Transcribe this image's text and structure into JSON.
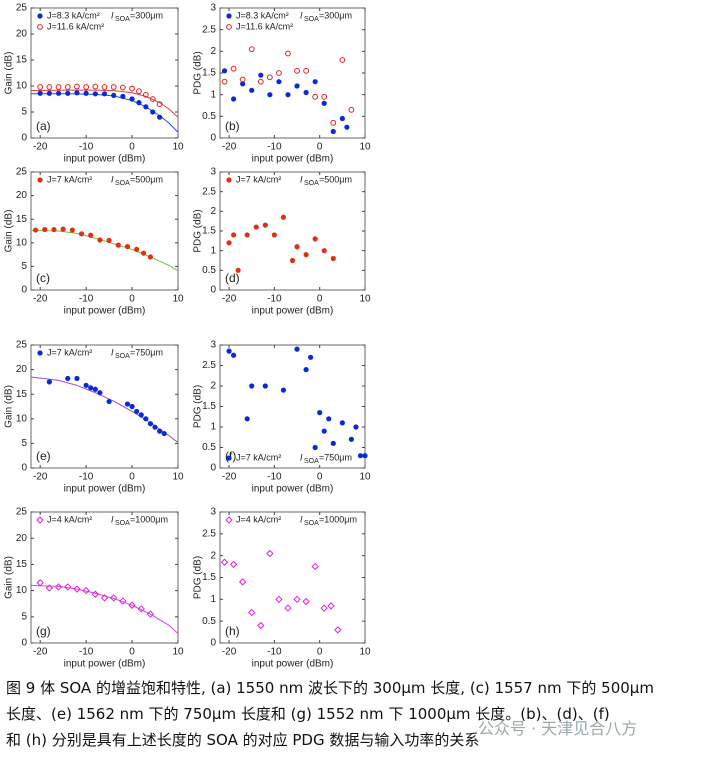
{
  "chart_data": [
    {
      "type": "scatter",
      "ylabel": "Gain (dB)",
      "xlabel": "input power (dBm)",
      "panel": "(a)",
      "xlim": [
        -22,
        10
      ],
      "ylim": [
        0,
        25
      ],
      "xticks": [
        -20,
        -10,
        0,
        10
      ],
      "yticks": [
        0,
        5,
        10,
        15,
        20,
        25
      ],
      "legend": "upper left",
      "annotation": {
        "symbol": "I",
        "subscript": "SOA",
        "text": "=300μm"
      },
      "series": [
        {
          "name": "J=8.3 kA/cm²",
          "color": "#0a2ad8",
          "marker": "filled-circle",
          "x": [
            -20,
            -18,
            -16,
            -14,
            -12,
            -10,
            -8,
            -6,
            -4,
            -2,
            0,
            1.5,
            3,
            4.5,
            6
          ],
          "values": [
            8.6,
            8.6,
            8.6,
            8.6,
            8.7,
            8.6,
            8.5,
            8.5,
            8.2,
            8,
            7.5,
            6.8,
            6,
            5,
            4
          ],
          "fit": {
            "color": "#2050e0",
            "x": [
              -22,
              -14,
              -8,
              -4,
              0,
              3,
              6,
              8,
              10
            ],
            "values": [
              8.5,
              8.5,
              8.4,
              8.1,
              7.2,
              6,
              4.3,
              2.9,
              1.1
            ]
          }
        },
        {
          "name": "J=11.6 kA/cm²",
          "color": "#e02020",
          "marker": "open-circle",
          "x": [
            -20,
            -18,
            -16,
            -14,
            -12,
            -10,
            -8,
            -6,
            -4,
            -2,
            0,
            1.5,
            3,
            4.5,
            6
          ],
          "values": [
            9.8,
            9.8,
            9.8,
            9.8,
            9.9,
            9.8,
            9.9,
            9.8,
            9.8,
            9.7,
            9.5,
            9,
            8.3,
            7.5,
            6.5
          ],
          "fit": {
            "color": "#e04040",
            "x": [
              -22,
              -14,
              -8,
              -4,
              0,
              3,
              6,
              8,
              10
            ],
            "values": [
              9.1,
              9.2,
              9.2,
              9.1,
              8.7,
              8,
              6.8,
              5.6,
              4
            ]
          }
        }
      ]
    },
    {
      "type": "scatter",
      "ylabel": "PDG (dB)",
      "xlabel": "input power (dBm)",
      "panel": "(b)",
      "xlim": [
        -22,
        10
      ],
      "ylim": [
        0,
        3
      ],
      "xticks": [
        -20,
        -10,
        0,
        10
      ],
      "yticks": [
        0,
        0.5,
        1,
        1.5,
        2,
        2.5,
        3
      ],
      "legend": "upper left",
      "annotation": {
        "symbol": "I",
        "subscript": "SOA",
        "text": "=300μm"
      },
      "series": [
        {
          "name": "J=8.3 kA/cm²",
          "color": "#0a2ad8",
          "marker": "filled-circle",
          "x": [
            -21,
            -19,
            -17,
            -15,
            -13,
            -11,
            -9,
            -7,
            -5,
            -3,
            -1,
            1,
            3,
            5,
            6
          ],
          "values": [
            1.55,
            0.9,
            1.25,
            1.1,
            1.45,
            1.0,
            1.3,
            1.0,
            1.2,
            1.05,
            1.3,
            0.8,
            0.15,
            0.45,
            0.25
          ]
        },
        {
          "name": "J=11.6 kA/cm²",
          "color": "#e02020",
          "marker": "open-circle",
          "x": [
            -21,
            -19,
            -17,
            -15,
            -13,
            -11,
            -9,
            -7,
            -5,
            -3,
            -1,
            1,
            3,
            5,
            7
          ],
          "values": [
            1.3,
            1.6,
            1.35,
            2.05,
            1.3,
            1.4,
            1.5,
            1.95,
            1.55,
            1.55,
            0.95,
            0.95,
            0.35,
            1.8,
            0.65
          ]
        }
      ]
    },
    {
      "type": "scatter",
      "ylabel": "Gain (dB)",
      "xlabel": "input power (dBm)",
      "panel": "(c)",
      "xlim": [
        -22,
        10
      ],
      "ylim": [
        0,
        25
      ],
      "xticks": [
        -20,
        -10,
        0,
        10
      ],
      "yticks": [
        0,
        5,
        10,
        15,
        20,
        25
      ],
      "legend": "upper left",
      "annotation": {
        "symbol": "I",
        "subscript": "SOA",
        "text": "=500μm"
      },
      "series": [
        {
          "name": "J=7 kA/cm²",
          "color": "#e03010",
          "marker": "filled-circle",
          "x": [
            -21,
            -19,
            -17,
            -15,
            -13,
            -11,
            -9,
            -7,
            -5,
            -3,
            -1,
            1,
            2.5,
            4
          ],
          "values": [
            12.7,
            12.8,
            12.8,
            12.9,
            12.7,
            11.9,
            11.6,
            10.6,
            10.5,
            9.5,
            9.2,
            8.6,
            7.8,
            7
          ],
          "fit": {
            "color": "#70c040",
            "x": [
              -22,
              -16,
              -12,
              -8,
              -4,
              0,
              4,
              8,
              10
            ],
            "values": [
              12.6,
              12.5,
              12,
              11,
              9.8,
              8.6,
              7,
              5.2,
              4.1
            ]
          }
        }
      ]
    },
    {
      "type": "scatter",
      "ylabel": "PDG (dB)",
      "xlabel": "input power (dBm)",
      "panel": "(d)",
      "xlim": [
        -22,
        10
      ],
      "ylim": [
        0,
        3
      ],
      "xticks": [
        -20,
        -10,
        0,
        10
      ],
      "yticks": [
        0,
        0.5,
        1,
        1.5,
        2,
        2.5,
        3
      ],
      "legend": "upper left",
      "annotation": {
        "symbol": "I",
        "subscript": "SOA",
        "text": "=500μm"
      },
      "series": [
        {
          "name": "J=7 kA/cm²",
          "color": "#e03010",
          "marker": "filled-circle",
          "x": [
            -20,
            -19,
            -18,
            -16,
            -14,
            -12,
            -10,
            -8,
            -6,
            -5,
            -3,
            -1,
            1,
            3
          ],
          "values": [
            1.2,
            1.4,
            0.5,
            1.4,
            1.6,
            1.65,
            1.4,
            1.85,
            0.75,
            1.1,
            0.9,
            1.3,
            1.0,
            0.8
          ]
        }
      ]
    },
    {
      "type": "scatter",
      "ylabel": "Gain (dB)",
      "xlabel": "input power (dBm)",
      "panel": "(e)",
      "xlim": [
        -22,
        10
      ],
      "ylim": [
        0,
        25
      ],
      "xticks": [
        -20,
        -10,
        0,
        10
      ],
      "yticks": [
        0,
        5,
        10,
        15,
        20,
        25
      ],
      "legend": "upper left",
      "annotation": {
        "symbol": "I",
        "subscript": "SOA",
        "text": "=750μm"
      },
      "series": [
        {
          "name": "J=7 kA/cm²",
          "color": "#0a2ad8",
          "marker": "filled-circle",
          "x": [
            -18,
            -14,
            -12,
            -10,
            -9,
            -8,
            -7,
            -5,
            -1,
            0,
            1,
            2,
            3,
            4,
            5,
            6,
            7
          ],
          "values": [
            17.5,
            18.2,
            18.2,
            16.8,
            16.3,
            16,
            15.3,
            13.5,
            13,
            12.5,
            11.5,
            10.8,
            10,
            9,
            8.3,
            7.5,
            7
          ],
          "fit": {
            "color": "#9a50d0",
            "x": [
              -22,
              -16,
              -12,
              -8,
              -4,
              0,
              4,
              8,
              10
            ],
            "values": [
              18.5,
              17.8,
              16.8,
              15.3,
              13.6,
              11.5,
              9.2,
              6.6,
              5.2
            ]
          }
        }
      ]
    },
    {
      "type": "scatter",
      "ylabel": "PDG (dB)",
      "xlabel": "input power (dBm)",
      "panel": "(f)",
      "xlim": [
        -22,
        10
      ],
      "ylim": [
        0,
        3
      ],
      "xticks": [
        -20,
        -10,
        0,
        10
      ],
      "yticks": [
        0,
        0.5,
        1,
        1.5,
        2,
        2.5,
        3
      ],
      "legend": "lower left",
      "annotation": {
        "symbol": "I",
        "subscript": "SOA",
        "text": "=750μm"
      },
      "series": [
        {
          "name": "J=7 kA/cm²",
          "color": "#0a2ad8",
          "marker": "filled-circle",
          "x": [
            -20,
            -19,
            -16,
            -15,
            -12,
            -8,
            -5,
            -3,
            -2,
            -1,
            0,
            1,
            2,
            3,
            5,
            7,
            8,
            9,
            10
          ],
          "values": [
            2.85,
            2.75,
            1.2,
            2.0,
            2.0,
            1.9,
            2.9,
            2.4,
            2.7,
            0.5,
            1.35,
            0.9,
            1.2,
            0.6,
            1.1,
            0.7,
            1.0,
            0.3,
            0.3
          ]
        }
      ]
    },
    {
      "type": "scatter",
      "ylabel": "Gain (dB)",
      "xlabel": "input power (dBm)",
      "panel": "(g)",
      "xlim": [
        -22,
        10
      ],
      "ylim": [
        0,
        25
      ],
      "xticks": [
        -20,
        -10,
        0,
        10
      ],
      "yticks": [
        0,
        5,
        10,
        15,
        20,
        25
      ],
      "legend": "upper left",
      "annotation": {
        "symbol": "I",
        "subscript": "SOA",
        "text": "=1000μm"
      },
      "series": [
        {
          "name": "J=4 kA/cm²",
          "color": "#e020e0",
          "marker": "open-diamond",
          "x": [
            -20,
            -18,
            -16,
            -14,
            -12,
            -10,
            -8,
            -6,
            -4,
            -2,
            0,
            2,
            4
          ],
          "values": [
            11.5,
            10.5,
            10.7,
            10.7,
            10.3,
            10,
            9.3,
            8.6,
            8.6,
            8,
            7.2,
            6.5,
            5.5
          ],
          "fit": {
            "color": "#e040e0",
            "x": [
              -22,
              -16,
              -12,
              -8,
              -4,
              0,
              4,
              8,
              10
            ],
            "values": [
              11,
              10.8,
              10.3,
              9.5,
              8.5,
              7.2,
              5.5,
              3.4,
              1.8
            ]
          }
        }
      ]
    },
    {
      "type": "scatter",
      "ylabel": "PDG (dB)",
      "xlabel": "input power (dBm)",
      "panel": "(h)",
      "xlim": [
        -22,
        10
      ],
      "ylim": [
        0,
        3
      ],
      "xticks": [
        -20,
        -10,
        0,
        10
      ],
      "yticks": [
        0,
        0.5,
        1,
        1.5,
        2,
        2.5,
        3
      ],
      "legend": "upper left",
      "annotation": {
        "symbol": "I",
        "subscript": "SOA",
        "text": "=1000μm"
      },
      "series": [
        {
          "name": "J=4 kA/cm²",
          "color": "#e020e0",
          "marker": "open-diamond",
          "x": [
            -21,
            -19,
            -17,
            -15,
            -13,
            -11,
            -9,
            -7,
            -5,
            -3,
            -1,
            1,
            2.5,
            4
          ],
          "values": [
            1.85,
            1.8,
            1.4,
            0.7,
            0.4,
            2.05,
            1.0,
            0.8,
            1.0,
            0.95,
            1.75,
            0.8,
            0.85,
            0.3
          ]
        }
      ]
    }
  ],
  "caption": [
    "图 9 体 SOA 的增益饱和特性, (a) 1550 nm 波长下的 300μm 长度, (c) 1557 nm 下的 500μm",
    "长度、(e) 1562 nm 下的 750μm 长度和 (g) 1552 nm 下 1000μm 长度。(b)、(d)、(f)",
    "和 (h) 分别是具有上述长度的 SOA 的对应 PDG 数据与输入功率的关系"
  ],
  "watermark": "公众号 · 天津见合八方"
}
